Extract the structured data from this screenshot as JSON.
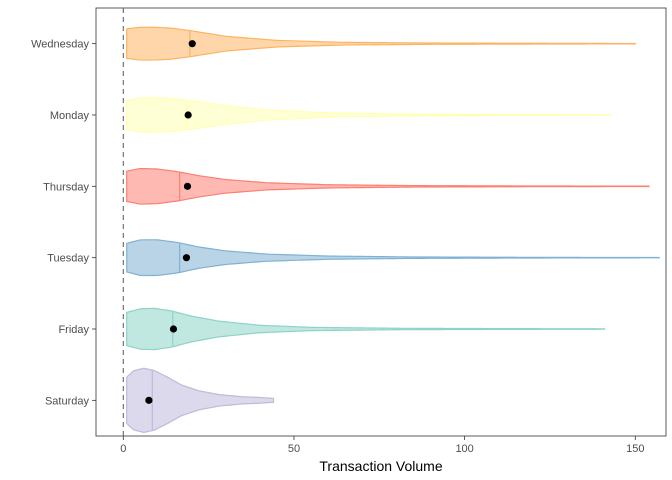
{
  "chart_data": {
    "type": "violin",
    "orientation": "horizontal",
    "xlabel": "Transaction Volume",
    "ylabel": "",
    "xlim": [
      -8,
      159
    ],
    "x_ticks": [
      0,
      50,
      100,
      150
    ],
    "reference_line": {
      "x": 0,
      "style": "dashed"
    },
    "grid": false,
    "legend": "none",
    "categories": [
      "Wednesday",
      "Monday",
      "Thursday",
      "Tuesday",
      "Friday",
      "Saturday"
    ],
    "series": [
      {
        "category": "Wednesday",
        "color": "#FDB462",
        "min": 1,
        "max": 150,
        "median": 19.5,
        "mean": 20.2,
        "peak": 9,
        "maxHalfWidth": 0.23,
        "shape": [
          [
            1,
            0.9
          ],
          [
            5,
            1.0
          ],
          [
            9,
            1.0
          ],
          [
            14,
            0.95
          ],
          [
            20,
            0.78
          ],
          [
            30,
            0.45
          ],
          [
            45,
            0.2
          ],
          [
            65,
            0.08
          ],
          [
            90,
            0.04
          ],
          [
            120,
            0.025
          ],
          [
            150,
            0.012
          ]
        ]
      },
      {
        "category": "Monday",
        "color": "#FFFFB3",
        "min": 1,
        "max": 143,
        "median": 18.5,
        "mean": 19.0,
        "peak": 9,
        "maxHalfWidth": 0.24,
        "shape": [
          [
            1,
            0.85
          ],
          [
            5,
            1.0
          ],
          [
            10,
            1.0
          ],
          [
            15,
            0.95
          ],
          [
            22,
            0.78
          ],
          [
            30,
            0.55
          ],
          [
            42,
            0.3
          ],
          [
            60,
            0.12
          ],
          [
            85,
            0.05
          ],
          [
            115,
            0.025
          ],
          [
            143,
            0.012
          ]
        ]
      },
      {
        "category": "Thursday",
        "color": "#FB8072",
        "min": 1,
        "max": 154,
        "median": 16.5,
        "mean": 18.8,
        "peak": 8,
        "maxHalfWidth": 0.25,
        "shape": [
          [
            1,
            0.85
          ],
          [
            5,
            1.0
          ],
          [
            10,
            0.97
          ],
          [
            16,
            0.82
          ],
          [
            22,
            0.6
          ],
          [
            30,
            0.38
          ],
          [
            42,
            0.2
          ],
          [
            60,
            0.09
          ],
          [
            85,
            0.04
          ],
          [
            120,
            0.02
          ],
          [
            154,
            0.01
          ]
        ]
      },
      {
        "category": "Tuesday",
        "color": "#80B1D3",
        "min": 1,
        "max": 157,
        "median": 16.5,
        "mean": 18.5,
        "peak": 8,
        "maxHalfWidth": 0.25,
        "shape": [
          [
            1,
            0.8
          ],
          [
            5,
            1.0
          ],
          [
            10,
            1.0
          ],
          [
            16,
            0.85
          ],
          [
            22,
            0.6
          ],
          [
            30,
            0.38
          ],
          [
            42,
            0.2
          ],
          [
            60,
            0.09
          ],
          [
            85,
            0.04
          ],
          [
            120,
            0.018
          ],
          [
            157,
            0.008
          ]
        ]
      },
      {
        "category": "Friday",
        "color": "#8DD3C7",
        "min": 1,
        "max": 141,
        "median": 14.5,
        "mean": 14.7,
        "peak": 8,
        "maxHalfWidth": 0.29,
        "shape": [
          [
            1,
            0.8
          ],
          [
            5,
            0.98
          ],
          [
            9,
            1.0
          ],
          [
            14,
            0.88
          ],
          [
            20,
            0.62
          ],
          [
            28,
            0.38
          ],
          [
            40,
            0.18
          ],
          [
            55,
            0.08
          ],
          [
            80,
            0.035
          ],
          [
            110,
            0.02
          ],
          [
            141,
            0.01
          ]
        ]
      },
      {
        "category": "Saturday",
        "color": "#BEBADA",
        "min": 1,
        "max": 44,
        "median": 8.5,
        "mean": 7.5,
        "peak": 5,
        "maxHalfWidth": 0.45,
        "shape": [
          [
            1,
            0.72
          ],
          [
            3,
            0.92
          ],
          [
            6,
            1.0
          ],
          [
            9,
            0.93
          ],
          [
            13,
            0.72
          ],
          [
            17,
            0.48
          ],
          [
            22,
            0.3
          ],
          [
            28,
            0.18
          ],
          [
            35,
            0.11
          ],
          [
            40,
            0.09
          ],
          [
            44,
            0.06
          ]
        ]
      }
    ]
  }
}
